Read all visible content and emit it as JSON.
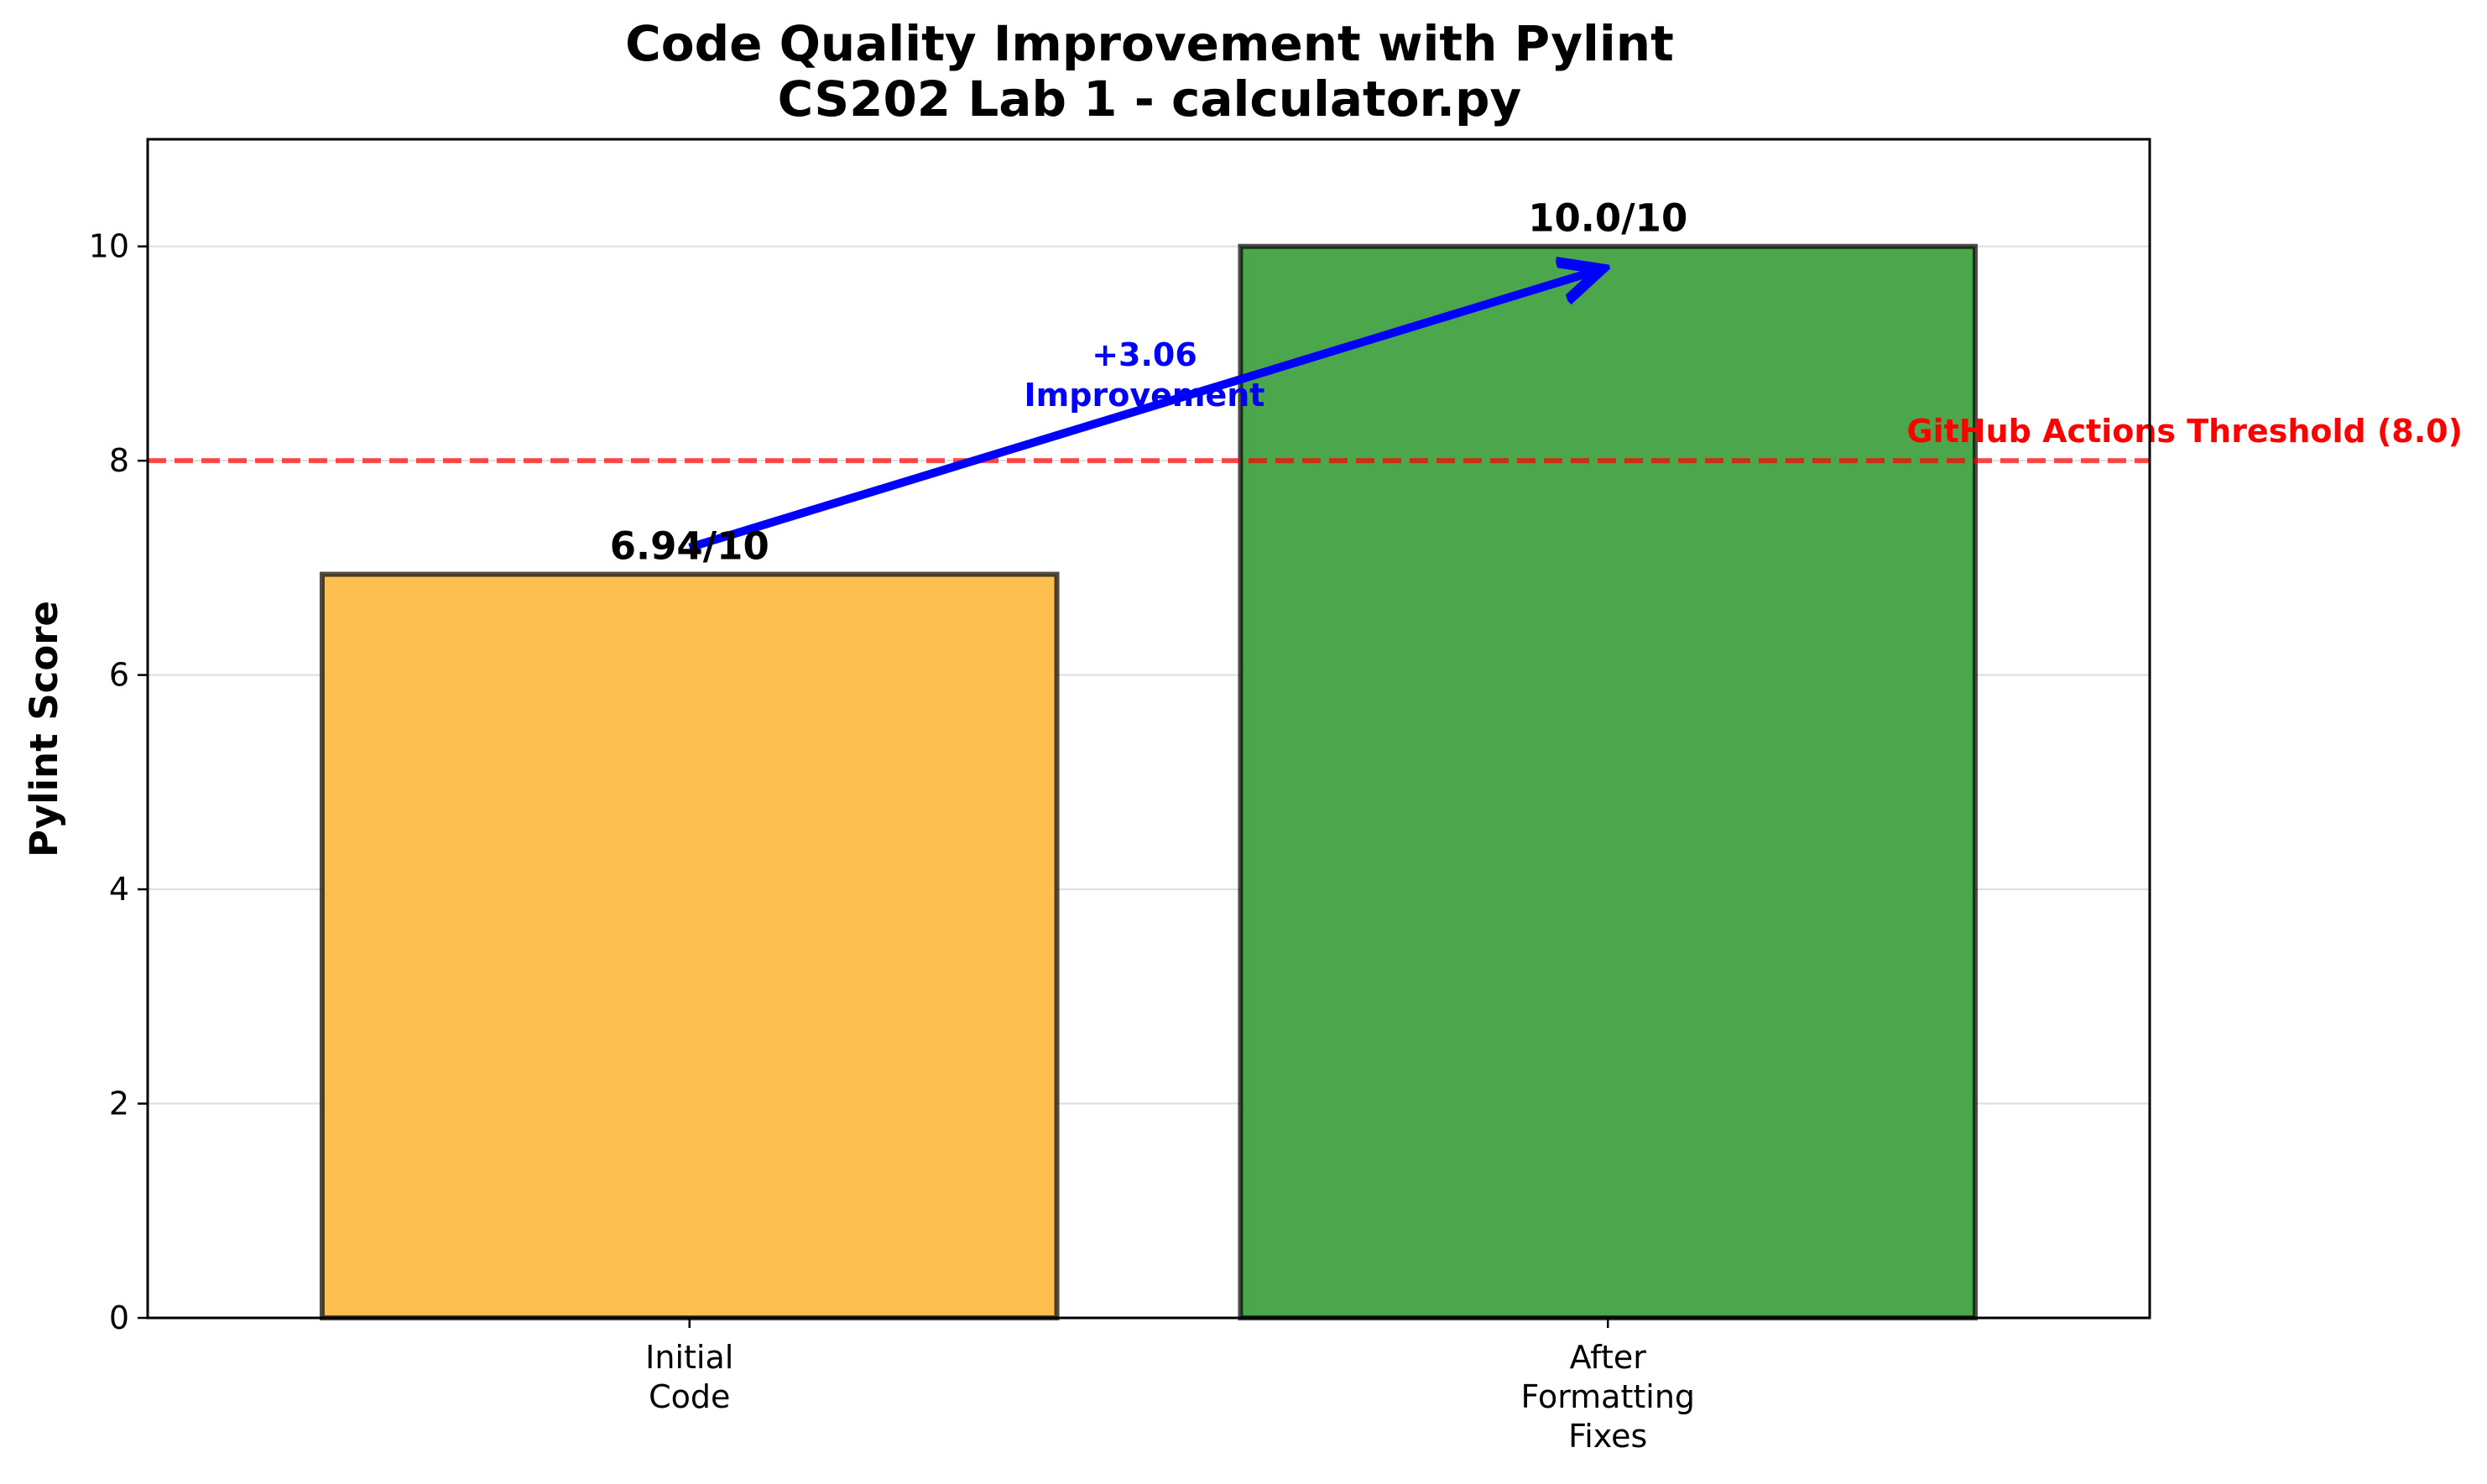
{
  "chart_data": {
    "type": "bar",
    "title": "Code Quality Improvement with Pylint",
    "subtitle": "CS202 Lab 1 - calculator.py",
    "xlabel": "",
    "ylabel": "Pylint Score",
    "ylim": [
      0,
      11
    ],
    "yticks": [
      "0",
      "2",
      "4",
      "6",
      "8",
      "10"
    ],
    "grid": true,
    "categories": [
      [
        "Initial",
        "Code"
      ],
      [
        "After",
        "Formatting",
        "Fixes"
      ]
    ],
    "values": [
      6.94,
      10.0
    ],
    "data_labels": [
      "6.94/10",
      "10.0/10"
    ],
    "bar_colors": [
      "#fdbf50",
      "#4ca64c"
    ],
    "threshold": {
      "value": 8.0,
      "label": "GitHub Actions Threshold (8.0)",
      "color": "#ff0000"
    },
    "annotation": {
      "lines": [
        "+3.06",
        "Improvement"
      ],
      "color": "#0000ff"
    }
  }
}
